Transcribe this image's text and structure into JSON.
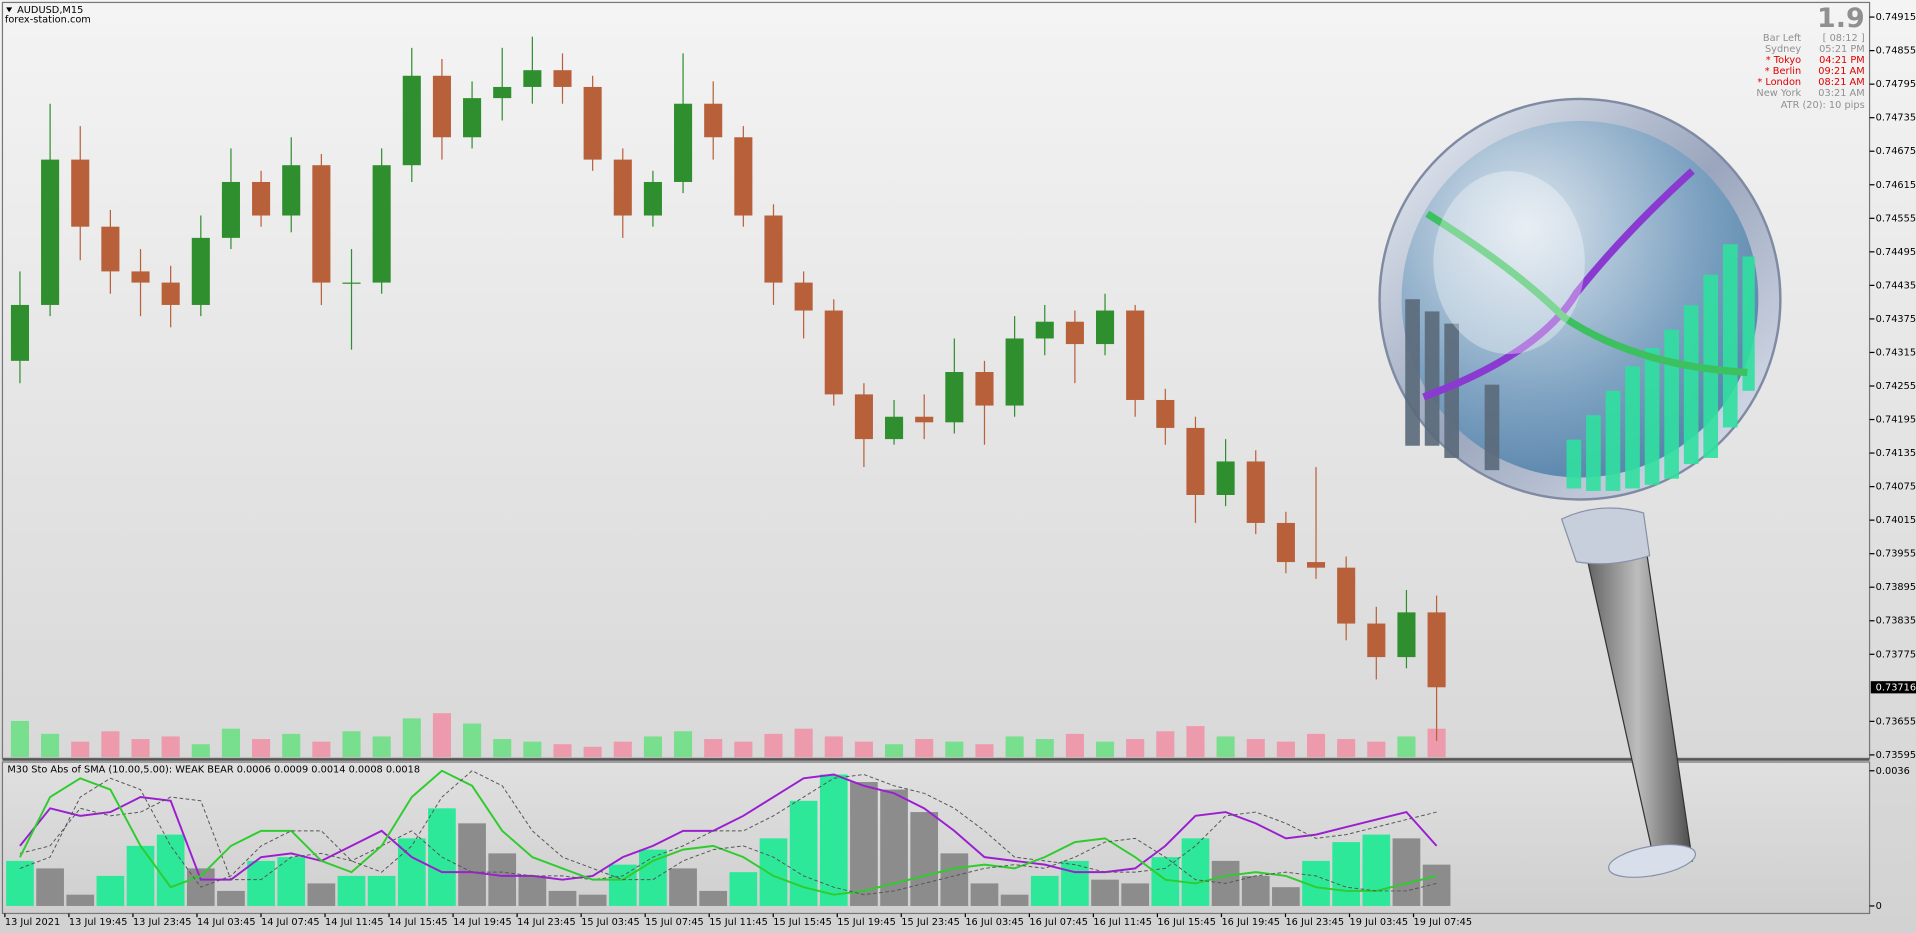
{
  "header": {
    "symbol": "AUDUSD,M15",
    "site": "forex-station.com"
  },
  "info": {
    "spread": "1.9",
    "rows": [
      [
        "Bar Left",
        "[ 08:12 ]"
      ],
      [
        "Sydney",
        "05:21 PM"
      ],
      [
        "* Tokyo",
        "04:21 PM"
      ],
      [
        "* Berlin",
        "09:21 AM"
      ],
      [
        "* London",
        "08:21 AM"
      ],
      [
        "New York",
        "03:21 AM"
      ]
    ],
    "highlight_rows": [
      2,
      3,
      4
    ],
    "atr": "ATR (20): 10 pips"
  },
  "chart_data": [
    {
      "type": "candlestick",
      "up_color": "#2f8f2f",
      "down_color": "#b8603a",
      "volume_up_color": "#5fe07a",
      "volume_down_color": "#f08aa0",
      "ylim": [
        0.73591,
        0.74939
      ],
      "yticks": [
        0.74915,
        0.74855,
        0.74795,
        0.74735,
        0.74675,
        0.74615,
        0.74555,
        0.74495,
        0.74435,
        0.74375,
        0.74315,
        0.74255,
        0.74195,
        0.74135,
        0.74075,
        0.74015,
        0.73955,
        0.73895,
        0.73835,
        0.73775,
        0.73655,
        0.73595
      ],
      "current_price": 0.73716,
      "x_labels": [
        "13 Jul 2021",
        "13 Jul 19:45",
        "13 Jul 23:45",
        "14 Jul 03:45",
        "14 Jul 07:45",
        "14 Jul 11:45",
        "14 Jul 15:45",
        "14 Jul 19:45",
        "14 Jul 23:45",
        "15 Jul 03:45",
        "15 Jul 07:45",
        "15 Jul 11:45",
        "15 Jul 15:45",
        "15 Jul 19:45",
        "15 Jul 23:45",
        "16 Jul 03:45",
        "16 Jul 07:45",
        "16 Jul 11:45",
        "16 Jul 15:45",
        "16 Jul 19:45",
        "16 Jul 23:45",
        "19 Jul 03:45",
        "19 Jul 07:45"
      ],
      "open": [
        0.743,
        0.744,
        0.7466,
        0.7454,
        0.7446,
        0.7444,
        0.744,
        0.7452,
        0.7462,
        0.7456,
        0.7465,
        0.7444,
        0.7444,
        0.7465,
        0.7481,
        0.747,
        0.7477,
        0.7479,
        0.7482,
        0.7479,
        0.7466,
        0.7456,
        0.7462,
        0.7476,
        0.747,
        0.7456,
        0.7444,
        0.7439,
        0.7424,
        0.7416,
        0.742,
        0.7419,
        0.7428,
        0.7422,
        0.7434,
        0.7437,
        0.7433,
        0.7439,
        0.7423,
        0.7418,
        0.7406,
        0.7412,
        0.7401,
        0.7394,
        0.7393,
        0.7383,
        0.7377,
        0.7385
      ],
      "high": [
        0.7446,
        0.7476,
        0.7472,
        0.7457,
        0.745,
        0.7447,
        0.7456,
        0.7468,
        0.7464,
        0.747,
        0.7467,
        0.745,
        0.7468,
        0.7486,
        0.7484,
        0.748,
        0.7486,
        0.7488,
        0.7485,
        0.7481,
        0.7468,
        0.7464,
        0.7485,
        0.748,
        0.7472,
        0.7458,
        0.7446,
        0.7441,
        0.7426,
        0.7423,
        0.7424,
        0.7434,
        0.743,
        0.7438,
        0.744,
        0.7439,
        0.7442,
        0.744,
        0.7425,
        0.742,
        0.7416,
        0.7414,
        0.7403,
        0.7411,
        0.7395,
        0.7386,
        0.7389,
        0.7388
      ],
      "low": [
        0.7426,
        0.7438,
        0.7448,
        0.7442,
        0.7438,
        0.7436,
        0.7438,
        0.745,
        0.7454,
        0.7453,
        0.744,
        0.7432,
        0.7442,
        0.7462,
        0.7466,
        0.7468,
        0.7473,
        0.7476,
        0.7476,
        0.7464,
        0.7452,
        0.7454,
        0.746,
        0.7466,
        0.7454,
        0.744,
        0.7434,
        0.7422,
        0.7411,
        0.7415,
        0.7416,
        0.7417,
        0.7415,
        0.742,
        0.7431,
        0.7426,
        0.7431,
        0.742,
        0.7415,
        0.7401,
        0.7404,
        0.7399,
        0.7392,
        0.7391,
        0.738,
        0.7373,
        0.7375,
        0.7362
      ],
      "close": [
        0.744,
        0.7466,
        0.7454,
        0.7446,
        0.7444,
        0.744,
        0.7452,
        0.7462,
        0.7456,
        0.7465,
        0.7444,
        0.7444,
        0.7465,
        0.7481,
        0.747,
        0.7477,
        0.7479,
        0.7482,
        0.7479,
        0.7466,
        0.7456,
        0.7462,
        0.7476,
        0.747,
        0.7456,
        0.7444,
        0.7439,
        0.7424,
        0.7416,
        0.742,
        0.7419,
        0.7428,
        0.7422,
        0.7434,
        0.7437,
        0.7433,
        0.7439,
        0.7423,
        0.7418,
        0.7406,
        0.7412,
        0.7401,
        0.7394,
        0.7393,
        0.7383,
        0.7377,
        0.7385,
        0.73716
      ],
      "volume": [
        28,
        18,
        12,
        20,
        14,
        16,
        10,
        22,
        14,
        18,
        12,
        20,
        16,
        30,
        34,
        26,
        14,
        12,
        10,
        8,
        12,
        16,
        20,
        14,
        12,
        18,
        22,
        16,
        12,
        10,
        14,
        12,
        10,
        16,
        14,
        18,
        12,
        14,
        20,
        24,
        16,
        14,
        12,
        18,
        14,
        12,
        16,
        22
      ]
    },
    {
      "type": "indicator",
      "title": "M30 Sto Abs of SMA (10.00,5.00): WEAK BEAR 0.0006 0.0009 0.0014 0.0008 0.0018",
      "ylim": [
        -0.0002,
        0.0038
      ],
      "yticks": [
        0.0036,
        0
      ],
      "hist_up_color": "#2ee89a",
      "hist_down_color": "#8c8c8c",
      "histogram": [
        0.0012,
        0.001,
        0.0003,
        0.0008,
        0.0016,
        0.0019,
        0.001,
        0.0004,
        0.0012,
        0.0013,
        0.0006,
        0.0008,
        0.0008,
        0.0018,
        0.0026,
        0.0022,
        0.0014,
        0.0008,
        0.0004,
        0.0003,
        0.0011,
        0.0015,
        0.001,
        0.0004,
        0.0009,
        0.0018,
        0.0028,
        0.0035,
        0.0033,
        0.0031,
        0.0025,
        0.0014,
        0.0006,
        0.0003,
        0.0008,
        0.0012,
        0.0007,
        0.0006,
        0.0013,
        0.0018,
        0.0012,
        0.0008,
        0.0005,
        0.0012,
        0.0017,
        0.0019,
        0.0018,
        0.0011
      ],
      "series": [
        {
          "color": "#9b1fd0",
          "dashed": false,
          "values": [
            0.0016,
            0.0026,
            0.0024,
            0.0025,
            0.0029,
            0.0028,
            0.0007,
            0.0007,
            0.0013,
            0.0014,
            0.0012,
            0.0016,
            0.002,
            0.0013,
            0.0009,
            0.0009,
            0.0008,
            0.0008,
            0.0007,
            0.0008,
            0.0013,
            0.0016,
            0.002,
            0.002,
            0.0024,
            0.0029,
            0.0034,
            0.0035,
            0.0032,
            0.003,
            0.0026,
            0.002,
            0.0013,
            0.0012,
            0.0011,
            0.0009,
            0.0009,
            0.001,
            0.0016,
            0.0024,
            0.0025,
            0.0022,
            0.0018,
            0.0019,
            0.0021,
            0.0023,
            0.0025,
            0.0016
          ]
        },
        {
          "color": "#555555",
          "dashed": true,
          "values": [
            0.0014,
            0.0016,
            0.0026,
            0.0024,
            0.0025,
            0.0029,
            0.0028,
            0.0007,
            0.0007,
            0.0013,
            0.0014,
            0.0012,
            0.0016,
            0.002,
            0.0013,
            0.0009,
            0.0009,
            0.0008,
            0.0008,
            0.0007,
            0.0008,
            0.0013,
            0.0016,
            0.002,
            0.002,
            0.0024,
            0.0029,
            0.0034,
            0.0035,
            0.0032,
            0.003,
            0.0026,
            0.002,
            0.0013,
            0.0012,
            0.0011,
            0.0009,
            0.0009,
            0.001,
            0.0016,
            0.0024,
            0.0025,
            0.0022,
            0.0018,
            0.0019,
            0.0021,
            0.0023,
            0.0025
          ]
        },
        {
          "color": "#2ecc2e",
          "dashed": false,
          "values": [
            0.0013,
            0.0029,
            0.0034,
            0.0031,
            0.0016,
            0.0005,
            0.0008,
            0.0016,
            0.002,
            0.002,
            0.0012,
            0.0009,
            0.0016,
            0.0029,
            0.0036,
            0.0032,
            0.002,
            0.0013,
            0.001,
            0.0007,
            0.0007,
            0.0012,
            0.0015,
            0.0016,
            0.0013,
            0.0008,
            0.0005,
            0.0003,
            0.0004,
            0.0006,
            0.0008,
            0.001,
            0.0011,
            0.001,
            0.0013,
            0.0017,
            0.0018,
            0.0013,
            0.0007,
            0.0006,
            0.0008,
            0.0009,
            0.0008,
            0.0005,
            0.0004,
            0.0004,
            0.0006,
            0.0008
          ]
        },
        {
          "color": "#555555",
          "dashed": true,
          "values": [
            0.001,
            0.0013,
            0.0029,
            0.0034,
            0.0031,
            0.0016,
            0.0005,
            0.0008,
            0.0016,
            0.002,
            0.002,
            0.0012,
            0.0009,
            0.0016,
            0.0029,
            0.0036,
            0.0032,
            0.002,
            0.0013,
            0.001,
            0.0007,
            0.0007,
            0.0012,
            0.0015,
            0.0016,
            0.0013,
            0.0008,
            0.0005,
            0.0003,
            0.0004,
            0.0006,
            0.0008,
            0.001,
            0.0011,
            0.001,
            0.0013,
            0.0017,
            0.0018,
            0.0013,
            0.0007,
            0.0006,
            0.0008,
            0.0009,
            0.0008,
            0.0005,
            0.0004,
            0.0004,
            0.0006
          ]
        }
      ]
    }
  ]
}
